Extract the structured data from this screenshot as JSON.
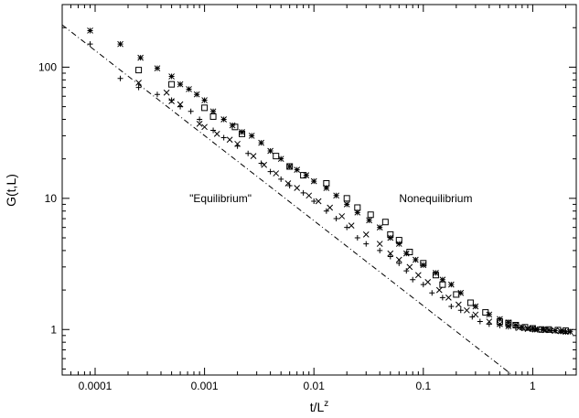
{
  "chart_data": {
    "type": "scatter",
    "title": "",
    "xlabel": "t/L",
    "xlabel_sup": "z",
    "ylabel": "G(t,L)",
    "xscale": "log",
    "yscale": "log",
    "xlim": [
      5e-05,
      2.5
    ],
    "ylim": [
      0.45,
      300
    ],
    "xticks": [
      0.0001,
      0.001,
      0.01,
      0.1,
      1
    ],
    "xtick_labels": [
      "0.0001",
      "0.001",
      "0.01",
      "0.1",
      "1"
    ],
    "yticks": [
      1,
      10,
      100
    ],
    "ytick_labels": [
      "1",
      "10",
      "100"
    ],
    "grid": false,
    "annotations": [
      {
        "text": "\"Equilibrium\"",
        "x": 0.0014,
        "y": 10
      },
      {
        "text": "Nonequilibrium",
        "x": 0.13,
        "y": 10
      }
    ],
    "reference_line": {
      "style": "dash-dot",
      "points": [
        [
          5e-05,
          210
        ],
        [
          0.65,
          0.45
        ]
      ]
    },
    "series": [
      {
        "marker": "asterisk",
        "points": [
          [
            9e-05,
            190
          ],
          [
            0.00017,
            150
          ],
          [
            0.00026,
            118
          ],
          [
            0.00037,
            98
          ],
          [
            0.0005,
            85
          ],
          [
            0.0006,
            74
          ],
          [
            0.00072,
            68
          ],
          [
            0.00085,
            62
          ],
          [
            0.001,
            56
          ],
          [
            0.0012,
            46
          ],
          [
            0.0015,
            40
          ],
          [
            0.0018,
            36
          ],
          [
            0.0022,
            32
          ],
          [
            0.0027,
            30
          ],
          [
            0.0033,
            26.5
          ],
          [
            0.004,
            23
          ],
          [
            0.005,
            20
          ],
          [
            0.006,
            17.5
          ],
          [
            0.007,
            16.5
          ],
          [
            0.0085,
            15
          ],
          [
            0.01,
            13.5
          ],
          [
            0.013,
            12
          ],
          [
            0.016,
            10.5
          ],
          [
            0.02,
            9
          ],
          [
            0.025,
            7.8
          ],
          [
            0.032,
            6.8
          ],
          [
            0.04,
            6
          ],
          [
            0.05,
            5
          ],
          [
            0.06,
            4.5
          ],
          [
            0.07,
            3.8
          ],
          [
            0.085,
            3.4
          ],
          [
            0.1,
            3.1
          ],
          [
            0.13,
            2.7
          ],
          [
            0.15,
            2.4
          ],
          [
            0.18,
            2.2
          ],
          [
            0.22,
            1.9
          ],
          [
            0.3,
            1.5
          ],
          [
            0.4,
            1.3
          ],
          [
            0.5,
            1.2
          ],
          [
            0.6,
            1.13
          ],
          [
            0.7,
            1.08
          ],
          [
            0.8,
            1.04
          ],
          [
            0.9,
            1.02
          ],
          [
            1.0,
            1.02
          ],
          [
            1.1,
            1.0
          ],
          [
            1.25,
            1.0
          ],
          [
            1.4,
            0.99
          ],
          [
            1.6,
            0.98
          ],
          [
            1.8,
            0.97
          ],
          [
            2.0,
            0.96
          ],
          [
            2.2,
            0.96
          ]
        ]
      },
      {
        "marker": "square",
        "points": [
          [
            0.00025,
            95
          ],
          [
            0.0005,
            74
          ],
          [
            0.001,
            49
          ],
          [
            0.0012,
            42
          ],
          [
            0.0019,
            35
          ],
          [
            0.0022,
            31
          ],
          [
            0.0045,
            21
          ],
          [
            0.006,
            17.5
          ],
          [
            0.008,
            15
          ],
          [
            0.013,
            13
          ],
          [
            0.02,
            10
          ],
          [
            0.025,
            8.5
          ],
          [
            0.033,
            7.5
          ],
          [
            0.045,
            6.6
          ],
          [
            0.05,
            5.3
          ],
          [
            0.06,
            4.8
          ],
          [
            0.075,
            3.9
          ],
          [
            0.1,
            3.2
          ],
          [
            0.13,
            2.6
          ],
          [
            0.15,
            2.2
          ],
          [
            0.2,
            1.85
          ],
          [
            0.27,
            1.6
          ],
          [
            0.37,
            1.35
          ],
          [
            0.5,
            1.15
          ],
          [
            0.6,
            1.12
          ],
          [
            0.7,
            1.08
          ],
          [
            0.85,
            1.04
          ],
          [
            1.0,
            1.02
          ],
          [
            1.2,
            1.0
          ],
          [
            1.4,
            1.0
          ],
          [
            1.7,
            0.99
          ],
          [
            2.0,
            0.98
          ]
        ]
      },
      {
        "marker": "plus",
        "points": [
          [
            9e-05,
            150
          ],
          [
            0.00017,
            82
          ],
          [
            0.00025,
            70
          ],
          [
            0.00037,
            62
          ],
          [
            0.0005,
            56
          ],
          [
            0.0006,
            50
          ],
          [
            0.00075,
            46
          ],
          [
            0.0009,
            40
          ],
          [
            0.0012,
            33
          ],
          [
            0.0015,
            29
          ],
          [
            0.002,
            25
          ],
          [
            0.0025,
            22
          ],
          [
            0.0033,
            18.5
          ],
          [
            0.004,
            16
          ],
          [
            0.005,
            14
          ],
          [
            0.006,
            12.5
          ],
          [
            0.008,
            11
          ],
          [
            0.01,
            9.5
          ],
          [
            0.013,
            8
          ],
          [
            0.016,
            7
          ],
          [
            0.02,
            6
          ],
          [
            0.025,
            5
          ],
          [
            0.03,
            4.5
          ],
          [
            0.04,
            4
          ],
          [
            0.05,
            3.6
          ],
          [
            0.06,
            3.2
          ],
          [
            0.07,
            2.8
          ],
          [
            0.08,
            2.4
          ],
          [
            0.1,
            2.2
          ],
          [
            0.12,
            1.9
          ],
          [
            0.15,
            1.75
          ],
          [
            0.18,
            1.5
          ],
          [
            0.22,
            1.4
          ],
          [
            0.28,
            1.25
          ],
          [
            0.33,
            1.15
          ],
          [
            0.4,
            1.1
          ],
          [
            0.5,
            1.07
          ],
          [
            0.6,
            1.05
          ],
          [
            0.7,
            1.03
          ],
          [
            0.8,
            1.02
          ],
          [
            1.0,
            1.0
          ],
          [
            1.2,
            1.0
          ],
          [
            1.5,
            0.98
          ],
          [
            1.8,
            0.97
          ],
          [
            2.0,
            0.96
          ]
        ]
      },
      {
        "marker": "cross",
        "points": [
          [
            0.00025,
            76
          ],
          [
            0.00045,
            64
          ],
          [
            0.0005,
            55
          ],
          [
            0.0006,
            52
          ],
          [
            0.0009,
            37
          ],
          [
            0.001,
            35
          ],
          [
            0.0013,
            31
          ],
          [
            0.0017,
            28
          ],
          [
            0.002,
            26
          ],
          [
            0.0028,
            21
          ],
          [
            0.0035,
            18
          ],
          [
            0.0045,
            15.5
          ],
          [
            0.0058,
            13
          ],
          [
            0.007,
            12
          ],
          [
            0.009,
            10.5
          ],
          [
            0.011,
            9.5
          ],
          [
            0.014,
            8.5
          ],
          [
            0.018,
            7.3
          ],
          [
            0.022,
            6.2
          ],
          [
            0.03,
            5.3
          ],
          [
            0.04,
            4.5
          ],
          [
            0.05,
            3.8
          ],
          [
            0.06,
            3.4
          ],
          [
            0.075,
            3
          ],
          [
            0.09,
            2.6
          ],
          [
            0.11,
            2.3
          ],
          [
            0.14,
            2
          ],
          [
            0.17,
            1.75
          ],
          [
            0.21,
            1.55
          ],
          [
            0.25,
            1.4
          ],
          [
            0.3,
            1.3
          ],
          [
            0.4,
            1.15
          ],
          [
            0.5,
            1.1
          ],
          [
            0.6,
            1.06
          ],
          [
            0.75,
            1.03
          ],
          [
            0.9,
            1.01
          ],
          [
            1.05,
            1.0
          ],
          [
            1.3,
            0.99
          ],
          [
            1.6,
            0.98
          ],
          [
            1.9,
            0.97
          ]
        ]
      }
    ]
  }
}
